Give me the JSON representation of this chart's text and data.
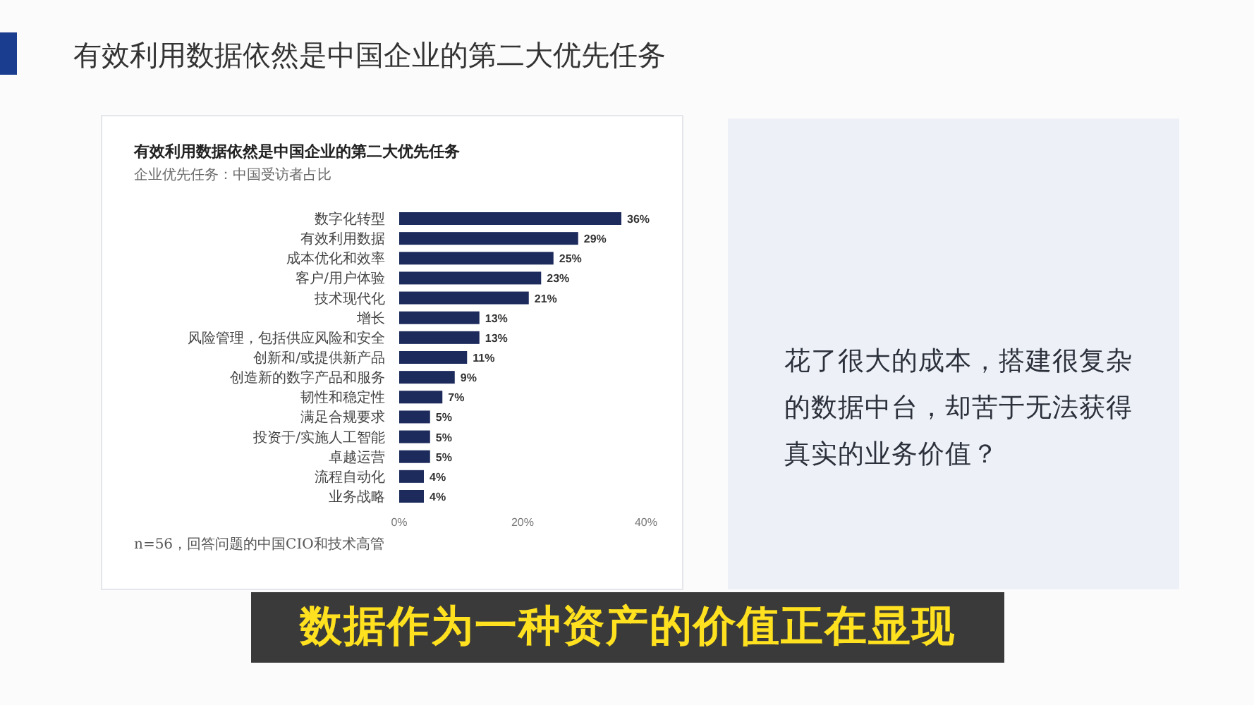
{
  "chart_data": {
    "type": "bar",
    "orientation": "horizontal",
    "title": "有效利用数据依然是中国企业的第二大优先任务",
    "subtitle": "企业优先任务：中国受访者占比",
    "categories": [
      "数字化转型",
      "有效利用数据",
      "成本优化和效率",
      "客户/用户体验",
      "技术现代化",
      "增长",
      "风险管理，包括供应风险和安全",
      "创新和/或提供新产品",
      "创造新的数字产品和服务",
      "韧性和稳定性",
      "满足合规要求",
      "投资于/实施人工智能",
      "卓越运营",
      "流程自动化",
      "业务战略"
    ],
    "values": [
      36,
      29,
      25,
      23,
      21,
      13,
      13,
      11,
      9,
      7,
      5,
      5,
      5,
      4,
      4
    ],
    "value_labels": [
      "36%",
      "29%",
      "25%",
      "23%",
      "21%",
      "13%",
      "13%",
      "11%",
      "9%",
      "7%",
      "5%",
      "5%",
      "5%",
      "4%",
      "4%"
    ],
    "color": "#1c2a5c",
    "xlim": [
      0,
      40
    ],
    "xticks": [
      {
        "value": 0,
        "label": "0%"
      },
      {
        "value": 20,
        "label": "20%"
      },
      {
        "value": 40,
        "label": "40%"
      }
    ],
    "annotations": [
      "有效利用数据依然是中国企业的第二大优先任务",
      "n=56，回答问题的中国CIO和技术高管",
      "花了很大的成本，搭建很复杂的数据中台，却苦于无法获得真实的业务价值？",
      "数据作为一种资产的价值正在显现"
    ]
  }
}
